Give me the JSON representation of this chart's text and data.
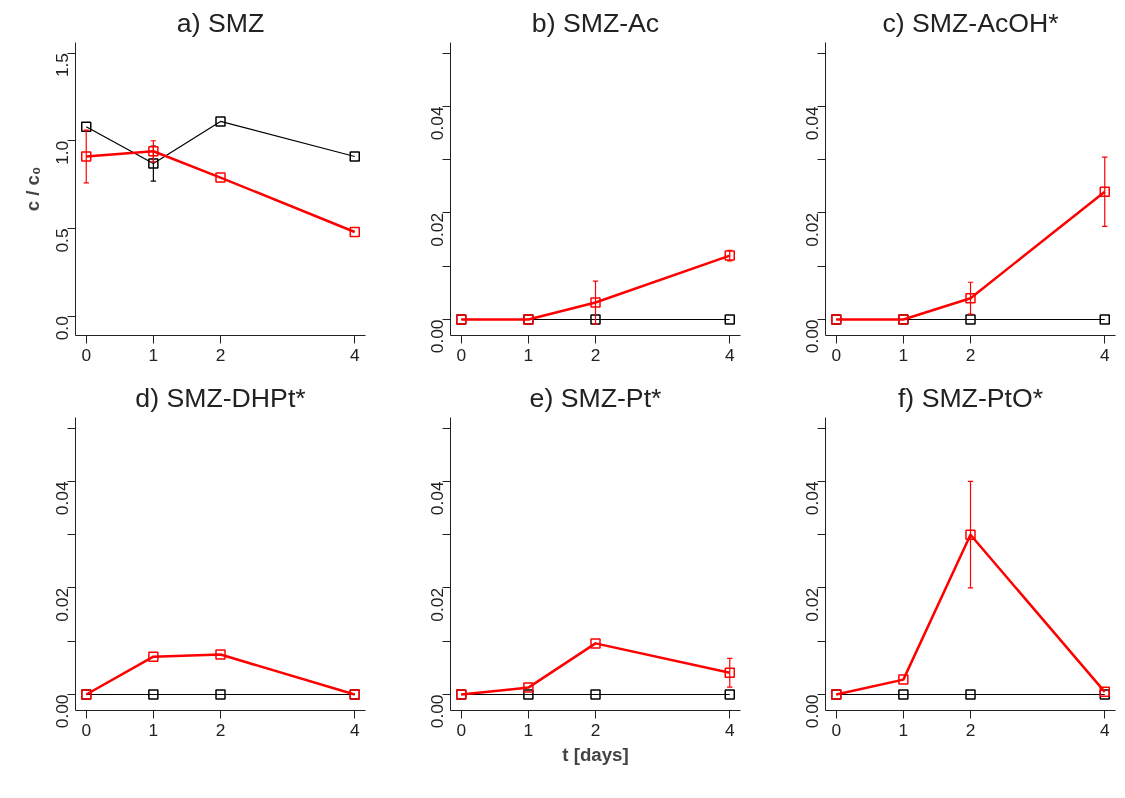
{
  "chart_data": [
    {
      "type": "line",
      "title": "a) SMZ",
      "ylabel": "c / c₀",
      "x": [
        0,
        1,
        2,
        4
      ],
      "xlim": [
        -0.16,
        4.16
      ],
      "xticks": [
        0,
        1,
        2,
        4
      ],
      "ylim": [
        -0.11,
        1.56
      ],
      "yticks": [
        {
          "value": 0,
          "label": "0.0"
        },
        {
          "value": 0.5,
          "label": "0.5"
        },
        {
          "value": 1,
          "label": "1.0"
        },
        {
          "value": 1.5,
          "label": "1.5"
        }
      ],
      "marker": "square",
      "grid": false,
      "series": [
        {
          "color": "#000000",
          "values": [
            1.08,
            0.87,
            1.11,
            0.91
          ],
          "errors": [
            null,
            0.1,
            null,
            null
          ]
        },
        {
          "color": "#ff0000",
          "values": [
            0.91,
            0.94,
            0.79,
            0.48
          ],
          "errors": [
            0.15,
            0.06,
            null,
            null
          ]
        }
      ]
    },
    {
      "type": "line",
      "title": "b) SMZ-Ac",
      "x": [
        0,
        1,
        2,
        4
      ],
      "xlim": [
        -0.16,
        4.16
      ],
      "xticks": [
        0,
        1,
        2,
        4
      ],
      "ylim": [
        -0.003,
        0.052
      ],
      "yticks": [
        {
          "value": 0,
          "label": "0.00"
        },
        {
          "value": 0.01,
          "label": null
        },
        {
          "value": 0.02,
          "label": "0.02"
        },
        {
          "value": 0.03,
          "label": null
        },
        {
          "value": 0.04,
          "label": "0.04"
        },
        {
          "value": 0.05,
          "label": null
        }
      ],
      "marker": "square",
      "grid": false,
      "series": [
        {
          "color": "#000000",
          "values": [
            0,
            0,
            0,
            0
          ]
        },
        {
          "color": "#ff0000",
          "values": [
            0,
            0,
            0.0032,
            0.012
          ],
          "errors": [
            null,
            null,
            0.004,
            0.001
          ]
        }
      ]
    },
    {
      "type": "line",
      "title": "c) SMZ-AcOH*",
      "x": [
        0,
        1,
        2,
        4
      ],
      "xlim": [
        -0.16,
        4.16
      ],
      "xticks": [
        0,
        1,
        2,
        4
      ],
      "ylim": [
        -0.003,
        0.052
      ],
      "yticks": [
        {
          "value": 0,
          "label": "0.00"
        },
        {
          "value": 0.01,
          "label": null
        },
        {
          "value": 0.02,
          "label": "0.02"
        },
        {
          "value": 0.03,
          "label": null
        },
        {
          "value": 0.04,
          "label": "0.04"
        },
        {
          "value": 0.05,
          "label": null
        }
      ],
      "marker": "square",
      "grid": false,
      "series": [
        {
          "color": "#000000",
          "values": [
            0,
            0,
            0,
            0
          ]
        },
        {
          "color": "#ff0000",
          "values": [
            0,
            0,
            0.004,
            0.024
          ],
          "errors": [
            null,
            null,
            0.003,
            0.0065
          ]
        }
      ]
    },
    {
      "type": "line",
      "title": "d) SMZ-DHPt*",
      "x": [
        0,
        1,
        2,
        4
      ],
      "xlim": [
        -0.16,
        4.16
      ],
      "xticks": [
        0,
        1,
        2,
        4
      ],
      "ylim": [
        -0.003,
        0.052
      ],
      "yticks": [
        {
          "value": 0,
          "label": "0.00"
        },
        {
          "value": 0.01,
          "label": null
        },
        {
          "value": 0.02,
          "label": "0.02"
        },
        {
          "value": 0.03,
          "label": null
        },
        {
          "value": 0.04,
          "label": "0.04"
        },
        {
          "value": 0.05,
          "label": null
        }
      ],
      "marker": "square",
      "grid": false,
      "series": [
        {
          "color": "#000000",
          "values": [
            0,
            0,
            0,
            0
          ]
        },
        {
          "color": "#ff0000",
          "values": [
            0,
            0.0071,
            0.0075,
            0
          ]
        }
      ]
    },
    {
      "type": "line",
      "title": "e) SMZ-Pt*",
      "xlabel": "t [days]",
      "x": [
        0,
        1,
        2,
        4
      ],
      "xlim": [
        -0.16,
        4.16
      ],
      "xticks": [
        0,
        1,
        2,
        4
      ],
      "ylim": [
        -0.003,
        0.052
      ],
      "yticks": [
        {
          "value": 0,
          "label": "0.00"
        },
        {
          "value": 0.01,
          "label": null
        },
        {
          "value": 0.02,
          "label": "0.02"
        },
        {
          "value": 0.03,
          "label": null
        },
        {
          "value": 0.04,
          "label": "0.04"
        },
        {
          "value": 0.05,
          "label": null
        }
      ],
      "marker": "square",
      "grid": false,
      "series": [
        {
          "color": "#000000",
          "values": [
            0,
            0,
            0,
            0
          ]
        },
        {
          "color": "#ff0000",
          "values": [
            0,
            0.0013,
            0.0096,
            0.0041
          ],
          "errors": [
            null,
            null,
            null,
            0.0027
          ]
        }
      ]
    },
    {
      "type": "line",
      "title": "f) SMZ-PtO*",
      "x": [
        0,
        1,
        2,
        4
      ],
      "xlim": [
        -0.16,
        4.16
      ],
      "xticks": [
        0,
        1,
        2,
        4
      ],
      "ylim": [
        -0.003,
        0.052
      ],
      "yticks": [
        {
          "value": 0,
          "label": "0.00"
        },
        {
          "value": 0.01,
          "label": null
        },
        {
          "value": 0.02,
          "label": "0.02"
        },
        {
          "value": 0.03,
          "label": null
        },
        {
          "value": 0.04,
          "label": "0.04"
        },
        {
          "value": 0.05,
          "label": null
        }
      ],
      "marker": "square",
      "grid": false,
      "series": [
        {
          "color": "#000000",
          "values": [
            0,
            0,
            0,
            0
          ]
        },
        {
          "color": "#ff0000",
          "values": [
            0,
            0.0028,
            0.03,
            0.0005
          ],
          "errors": [
            null,
            null,
            0.01,
            null
          ]
        }
      ]
    }
  ]
}
